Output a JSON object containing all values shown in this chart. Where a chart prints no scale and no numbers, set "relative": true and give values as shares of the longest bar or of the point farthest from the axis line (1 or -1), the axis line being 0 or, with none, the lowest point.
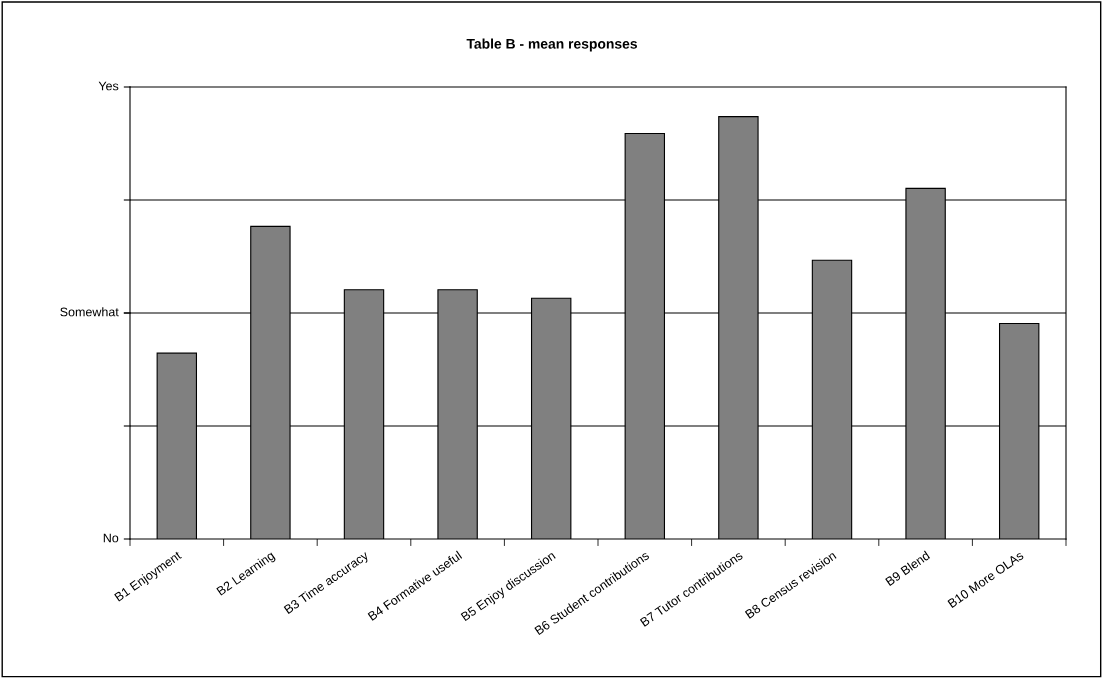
{
  "chart_data": {
    "type": "bar",
    "title": "Table B - mean responses",
    "categories": [
      "B1 Enjoyment",
      "B2 Learning",
      "B3 Time accuracy",
      "B4 Formative useful",
      "B5 Enjoy discussion",
      "B6 Student contributions",
      "B7 Tutor contributions",
      "B8 Census revision",
      "B9 Blend",
      "B10 More OLAs"
    ],
    "values": [
      0.44,
      0.74,
      0.59,
      0.59,
      0.57,
      0.96,
      1,
      0.66,
      0.83,
      0.51
    ],
    "color": "#808080",
    "relative": true,
    "annotations": [
      "No",
      "Somewhat",
      "Yes"
    ],
    "grid": "y"
  }
}
